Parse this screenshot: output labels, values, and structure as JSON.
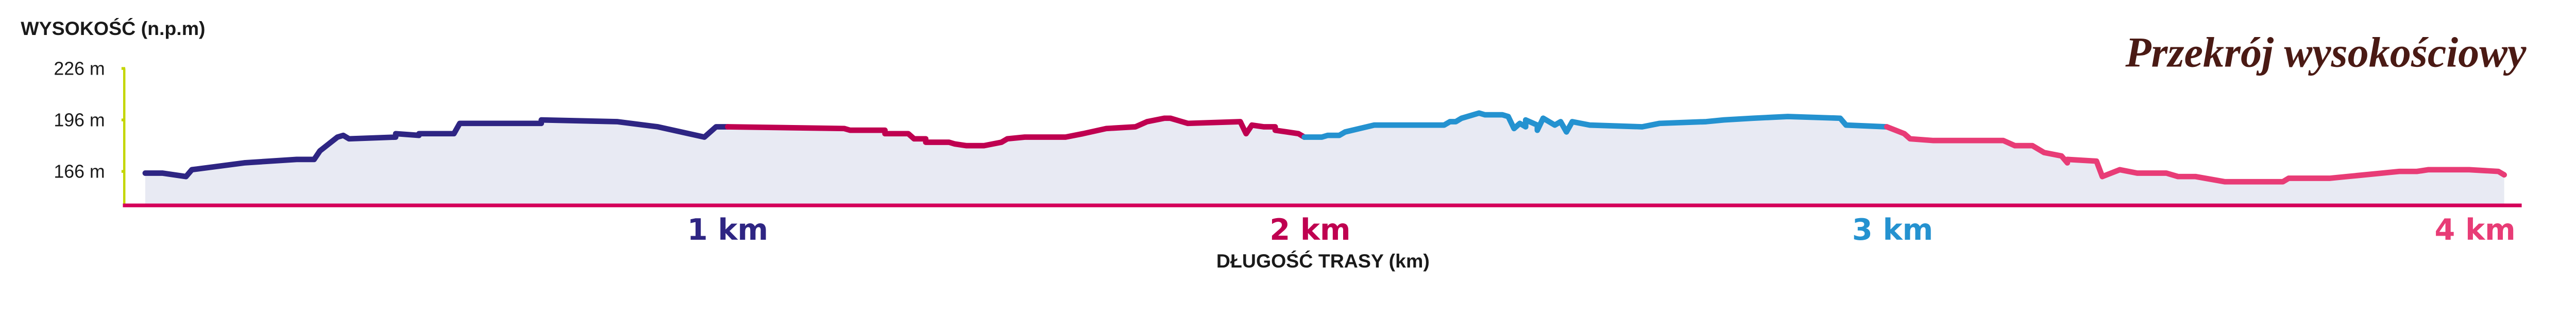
{
  "chart_data": {
    "type": "area",
    "title": "Przekrój wysokościowy",
    "ylabel": "WYSOKOŚĆ (n.p.m)",
    "xlabel": "DŁUGOŚĆ TRASY (km)",
    "ylim": [
      147,
      226
    ],
    "xlim": [
      -0.036,
      4.08
    ],
    "yticks": [
      {
        "value": 226,
        "label": "226 m"
      },
      {
        "value": 196,
        "label": "196 m"
      },
      {
        "value": 166,
        "label": "166 m"
      }
    ],
    "xticks": [
      {
        "value": 1,
        "label": "1 km",
        "color": "#2e2583"
      },
      {
        "value": 2,
        "label": "2 km",
        "color": "#bf0050"
      },
      {
        "value": 3,
        "label": "3 km",
        "color": "#2492d0"
      },
      {
        "value": 4,
        "label": "4 km",
        "color": "#e83c76"
      }
    ],
    "grid": false,
    "colors": {
      "fill": "#e8eaf3",
      "y_axis": "#c4d600",
      "x_axis": "#d4005a",
      "title": "#4a1a14"
    },
    "series": [
      {
        "color": "#2e2583",
        "points": [
          [
            0,
            165
          ],
          [
            0.03,
            165
          ],
          [
            0.07,
            163
          ],
          [
            0.08,
            167
          ],
          [
            0.17,
            171
          ],
          [
            0.26,
            173
          ],
          [
            0.29,
            173
          ],
          [
            0.3,
            178
          ],
          [
            0.33,
            186
          ],
          [
            0.34,
            187
          ],
          [
            0.35,
            185
          ],
          [
            0.43,
            186
          ],
          [
            0.43,
            188
          ],
          [
            0.47,
            187
          ],
          [
            0.47,
            188
          ],
          [
            0.53,
            188
          ],
          [
            0.54,
            194
          ],
          [
            0.68,
            194
          ],
          [
            0.68,
            196
          ],
          [
            0.81,
            195
          ],
          [
            0.88,
            192
          ],
          [
            0.96,
            186
          ],
          [
            0.98,
            192
          ],
          [
            1.0,
            192
          ]
        ]
      },
      {
        "color": "#bf0050",
        "points": [
          [
            1.0,
            192
          ],
          [
            1.2,
            191
          ],
          [
            1.21,
            190
          ],
          [
            1.27,
            190
          ],
          [
            1.27,
            188
          ],
          [
            1.31,
            188
          ],
          [
            1.32,
            185
          ],
          [
            1.34,
            185
          ],
          [
            1.34,
            183
          ],
          [
            1.38,
            183
          ],
          [
            1.39,
            182
          ],
          [
            1.41,
            181
          ],
          [
            1.44,
            181
          ],
          [
            1.47,
            183
          ],
          [
            1.48,
            185
          ],
          [
            1.51,
            186
          ],
          [
            1.58,
            186
          ],
          [
            1.61,
            188
          ],
          [
            1.65,
            191
          ],
          [
            1.7,
            192
          ],
          [
            1.72,
            195
          ],
          [
            1.75,
            197
          ],
          [
            1.76,
            197
          ],
          [
            1.78,
            195
          ],
          [
            1.79,
            194
          ],
          [
            1.88,
            195
          ],
          [
            1.89,
            188
          ],
          [
            1.9,
            193
          ],
          [
            1.92,
            192
          ],
          [
            1.94,
            192
          ],
          [
            1.94,
            190
          ],
          [
            1.96,
            189
          ],
          [
            1.98,
            188
          ],
          [
            1.99,
            186
          ]
        ]
      },
      {
        "color": "#2492d0",
        "points": [
          [
            1.99,
            186
          ],
          [
            2.02,
            186
          ],
          [
            2.03,
            187
          ],
          [
            2.05,
            187
          ],
          [
            2.06,
            189
          ],
          [
            2.11,
            193
          ],
          [
            2.23,
            193
          ],
          [
            2.24,
            195
          ],
          [
            2.25,
            195
          ],
          [
            2.26,
            197
          ],
          [
            2.29,
            200
          ],
          [
            2.3,
            199
          ],
          [
            2.33,
            199
          ],
          [
            2.34,
            198
          ],
          [
            2.35,
            191
          ],
          [
            2.36,
            194
          ],
          [
            2.37,
            192
          ],
          [
            2.37,
            196
          ],
          [
            2.39,
            193
          ],
          [
            2.39,
            190
          ],
          [
            2.4,
            197
          ],
          [
            2.42,
            193
          ],
          [
            2.43,
            195
          ],
          [
            2.44,
            189
          ],
          [
            2.45,
            195
          ],
          [
            2.48,
            193
          ],
          [
            2.57,
            192
          ],
          [
            2.6,
            194
          ],
          [
            2.68,
            195
          ],
          [
            2.71,
            196
          ],
          [
            2.76,
            197
          ],
          [
            2.82,
            198
          ],
          [
            2.91,
            197
          ],
          [
            2.92,
            193
          ],
          [
            2.99,
            192
          ]
        ]
      },
      {
        "color": "#e83c76",
        "points": [
          [
            2.99,
            192
          ],
          [
            3.02,
            188
          ],
          [
            3.03,
            185
          ],
          [
            3.07,
            184
          ],
          [
            3.19,
            184
          ],
          [
            3.21,
            181
          ],
          [
            3.24,
            181
          ],
          [
            3.26,
            177
          ],
          [
            3.29,
            175
          ],
          [
            3.3,
            171
          ],
          [
            3.3,
            173
          ],
          [
            3.35,
            172
          ],
          [
            3.36,
            163
          ],
          [
            3.39,
            167
          ],
          [
            3.42,
            165
          ],
          [
            3.47,
            165
          ],
          [
            3.49,
            163
          ],
          [
            3.52,
            163
          ],
          [
            3.57,
            160
          ],
          [
            3.67,
            160
          ],
          [
            3.68,
            162
          ],
          [
            3.75,
            162
          ],
          [
            3.78,
            163
          ],
          [
            3.87,
            166
          ],
          [
            3.9,
            166
          ],
          [
            3.92,
            167
          ],
          [
            3.99,
            167
          ],
          [
            4.04,
            166
          ],
          [
            4.05,
            164
          ]
        ]
      }
    ]
  }
}
